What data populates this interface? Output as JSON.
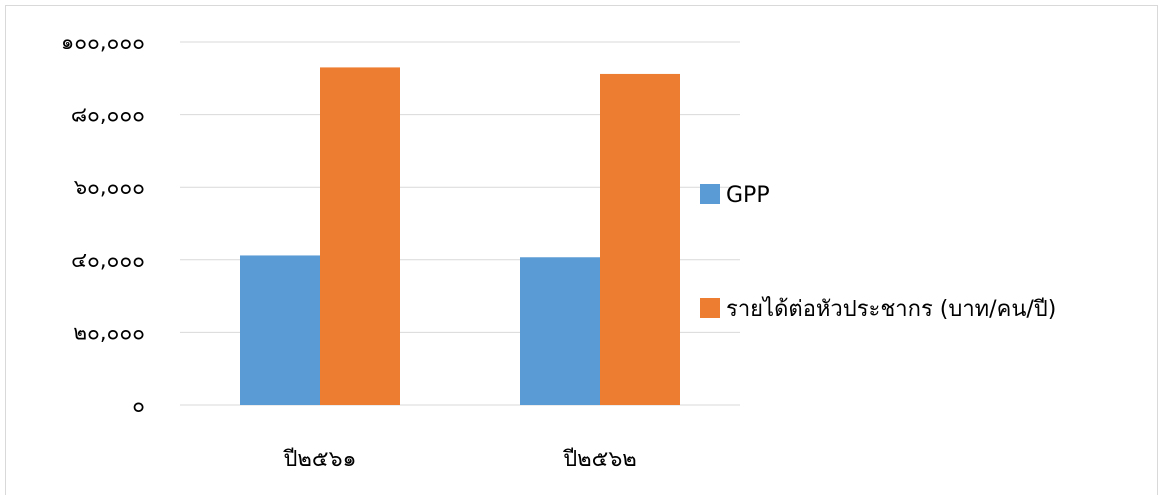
{
  "chart_data": {
    "type": "bar",
    "categories": [
      "ปี๒๕๖๑",
      "ปี๒๕๖๒"
    ],
    "series": [
      {
        "name": "GPP",
        "values": [
          41200,
          40700
        ],
        "color": "#5b9bd5"
      },
      {
        "name": "รายได้ต่อหัวประชากร (บาท/คน/ปี)",
        "values": [
          93000,
          91200
        ],
        "color": "#ed7d31"
      }
    ],
    "ylim": [
      0,
      100000
    ],
    "yticks": [
      0,
      20000,
      40000,
      60000,
      80000,
      100000
    ],
    "ytick_labels": [
      "๐",
      "๒๐,๐๐๐",
      "๔๐,๐๐๐",
      "๖๐,๐๐๐",
      "๘๐,๐๐๐",
      "๑๐๐,๐๐๐"
    ],
    "grid": true,
    "gridline_color": "#d9d9d9",
    "legend_position": "right"
  }
}
